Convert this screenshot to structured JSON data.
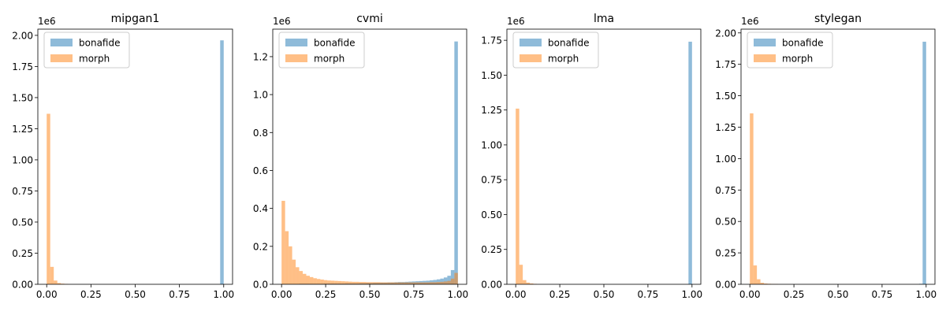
{
  "chart_data": [
    {
      "type": "bar",
      "title": "mipgan1",
      "multiplier": "1e6",
      "xlim": [
        -0.05,
        1.05
      ],
      "ylim": [
        0,
        2.05
      ],
      "xticks": [
        "0.00",
        "0.25",
        "0.50",
        "0.75",
        "1.00"
      ],
      "yticks": [
        "0.00",
        "0.25",
        "0.50",
        "0.75",
        "1.00",
        "1.25",
        "1.50",
        "1.75",
        "2.00"
      ],
      "legend": {
        "position": "top-left",
        "entries": [
          "bonafide",
          "morph"
        ]
      },
      "bin_width": 0.02,
      "series": [
        {
          "name": "bonafide",
          "color": "#1f77b4",
          "bins": [
            [
              0.98,
              1.96
            ]
          ]
        },
        {
          "name": "morph",
          "color": "#ff7f0e",
          "bins": [
            [
              0.0,
              1.37
            ],
            [
              0.02,
              0.14
            ],
            [
              0.04,
              0.03
            ],
            [
              0.06,
              0.01
            ],
            [
              0.08,
              0.005
            ],
            [
              0.1,
              0.003
            ]
          ]
        }
      ]
    },
    {
      "type": "bar",
      "title": "cvmi",
      "multiplier": "1e6",
      "xlim": [
        -0.05,
        1.05
      ],
      "ylim": [
        0,
        1.345
      ],
      "xticks": [
        "0.00",
        "0.25",
        "0.50",
        "0.75",
        "1.00"
      ],
      "yticks": [
        "0.0",
        "0.2",
        "0.4",
        "0.6",
        "0.8",
        "1.0",
        "1.2"
      ],
      "legend": {
        "position": "top-left",
        "entries": [
          "bonafide",
          "morph"
        ]
      },
      "bin_width": 0.02,
      "series": [
        {
          "name": "bonafide",
          "color": "#1f77b4",
          "bins": [
            [
              0.0,
              0.002
            ],
            [
              0.02,
              0.002
            ],
            [
              0.04,
              0.002
            ],
            [
              0.06,
              0.002
            ],
            [
              0.08,
              0.002
            ],
            [
              0.1,
              0.003
            ],
            [
              0.12,
              0.003
            ],
            [
              0.14,
              0.003
            ],
            [
              0.16,
              0.003
            ],
            [
              0.18,
              0.003
            ],
            [
              0.2,
              0.003
            ],
            [
              0.22,
              0.003
            ],
            [
              0.24,
              0.004
            ],
            [
              0.26,
              0.004
            ],
            [
              0.28,
              0.004
            ],
            [
              0.3,
              0.004
            ],
            [
              0.32,
              0.004
            ],
            [
              0.34,
              0.004
            ],
            [
              0.36,
              0.005
            ],
            [
              0.38,
              0.005
            ],
            [
              0.4,
              0.005
            ],
            [
              0.42,
              0.005
            ],
            [
              0.44,
              0.006
            ],
            [
              0.46,
              0.006
            ],
            [
              0.48,
              0.007
            ],
            [
              0.5,
              0.007
            ],
            [
              0.52,
              0.008
            ],
            [
              0.54,
              0.008
            ],
            [
              0.56,
              0.009
            ],
            [
              0.58,
              0.009
            ],
            [
              0.6,
              0.01
            ],
            [
              0.62,
              0.01
            ],
            [
              0.64,
              0.011
            ],
            [
              0.66,
              0.012
            ],
            [
              0.68,
              0.012
            ],
            [
              0.7,
              0.013
            ],
            [
              0.72,
              0.014
            ],
            [
              0.74,
              0.015
            ],
            [
              0.76,
              0.016
            ],
            [
              0.78,
              0.017
            ],
            [
              0.8,
              0.018
            ],
            [
              0.82,
              0.019
            ],
            [
              0.84,
              0.021
            ],
            [
              0.86,
              0.023
            ],
            [
              0.88,
              0.026
            ],
            [
              0.9,
              0.03
            ],
            [
              0.92,
              0.036
            ],
            [
              0.94,
              0.045
            ],
            [
              0.96,
              0.075
            ],
            [
              0.98,
              1.28
            ]
          ]
        },
        {
          "name": "morph",
          "color": "#ff7f0e",
          "bins": [
            [
              0.0,
              0.44
            ],
            [
              0.02,
              0.28
            ],
            [
              0.04,
              0.2
            ],
            [
              0.06,
              0.13
            ],
            [
              0.08,
              0.09
            ],
            [
              0.1,
              0.07
            ],
            [
              0.12,
              0.055
            ],
            [
              0.14,
              0.045
            ],
            [
              0.16,
              0.038
            ],
            [
              0.18,
              0.032
            ],
            [
              0.2,
              0.028
            ],
            [
              0.22,
              0.025
            ],
            [
              0.24,
              0.022
            ],
            [
              0.26,
              0.02
            ],
            [
              0.28,
              0.019
            ],
            [
              0.3,
              0.018
            ],
            [
              0.32,
              0.017
            ],
            [
              0.34,
              0.016
            ],
            [
              0.36,
              0.015
            ],
            [
              0.38,
              0.014
            ],
            [
              0.4,
              0.013
            ],
            [
              0.42,
              0.013
            ],
            [
              0.44,
              0.012
            ],
            [
              0.46,
              0.012
            ],
            [
              0.48,
              0.011
            ],
            [
              0.5,
              0.011
            ],
            [
              0.52,
              0.011
            ],
            [
              0.54,
              0.011
            ],
            [
              0.56,
              0.01
            ],
            [
              0.58,
              0.01
            ],
            [
              0.6,
              0.01
            ],
            [
              0.62,
              0.01
            ],
            [
              0.64,
              0.01
            ],
            [
              0.66,
              0.01
            ],
            [
              0.68,
              0.01
            ],
            [
              0.7,
              0.01
            ],
            [
              0.72,
              0.01
            ],
            [
              0.74,
              0.01
            ],
            [
              0.76,
              0.01
            ],
            [
              0.78,
              0.01
            ],
            [
              0.8,
              0.01
            ],
            [
              0.82,
              0.01
            ],
            [
              0.84,
              0.011
            ],
            [
              0.86,
              0.011
            ],
            [
              0.88,
              0.012
            ],
            [
              0.9,
              0.013
            ],
            [
              0.92,
              0.015
            ],
            [
              0.94,
              0.018
            ],
            [
              0.96,
              0.03
            ],
            [
              0.98,
              0.06
            ]
          ]
        }
      ]
    },
    {
      "type": "bar",
      "title": "lma",
      "multiplier": "1e6",
      "xlim": [
        -0.05,
        1.05
      ],
      "ylim": [
        0,
        1.83
      ],
      "xticks": [
        "0.00",
        "0.25",
        "0.50",
        "0.75",
        "1.00"
      ],
      "yticks": [
        "0.00",
        "0.25",
        "0.50",
        "0.75",
        "1.00",
        "1.25",
        "1.50",
        "1.75"
      ],
      "legend": {
        "position": "top-left",
        "entries": [
          "bonafide",
          "morph"
        ]
      },
      "bin_width": 0.02,
      "series": [
        {
          "name": "bonafide",
          "color": "#1f77b4",
          "bins": [
            [
              0.98,
              1.74
            ]
          ]
        },
        {
          "name": "morph",
          "color": "#ff7f0e",
          "bins": [
            [
              0.0,
              1.26
            ],
            [
              0.02,
              0.14
            ],
            [
              0.04,
              0.03
            ],
            [
              0.06,
              0.012
            ],
            [
              0.08,
              0.006
            ],
            [
              0.1,
              0.003
            ]
          ]
        }
      ]
    },
    {
      "type": "bar",
      "title": "stylegan",
      "multiplier": "1e6",
      "xlim": [
        -0.05,
        1.05
      ],
      "ylim": [
        0,
        2.03
      ],
      "xticks": [
        "0.00",
        "0.25",
        "0.50",
        "0.75",
        "1.00"
      ],
      "yticks": [
        "0.00",
        "0.25",
        "0.50",
        "0.75",
        "1.00",
        "1.25",
        "1.50",
        "1.75",
        "2.00"
      ],
      "legend": {
        "position": "top-left",
        "entries": [
          "bonafide",
          "morph"
        ]
      },
      "bin_width": 0.02,
      "series": [
        {
          "name": "bonafide",
          "color": "#1f77b4",
          "bins": [
            [
              0.96,
              0.004
            ],
            [
              0.98,
              1.93
            ]
          ]
        },
        {
          "name": "morph",
          "color": "#ff7f0e",
          "bins": [
            [
              0.0,
              1.36
            ],
            [
              0.02,
              0.15
            ],
            [
              0.04,
              0.04
            ],
            [
              0.06,
              0.012
            ],
            [
              0.08,
              0.006
            ],
            [
              0.1,
              0.004
            ],
            [
              0.12,
              0.003
            ],
            [
              0.14,
              0.002
            ]
          ]
        }
      ]
    }
  ]
}
